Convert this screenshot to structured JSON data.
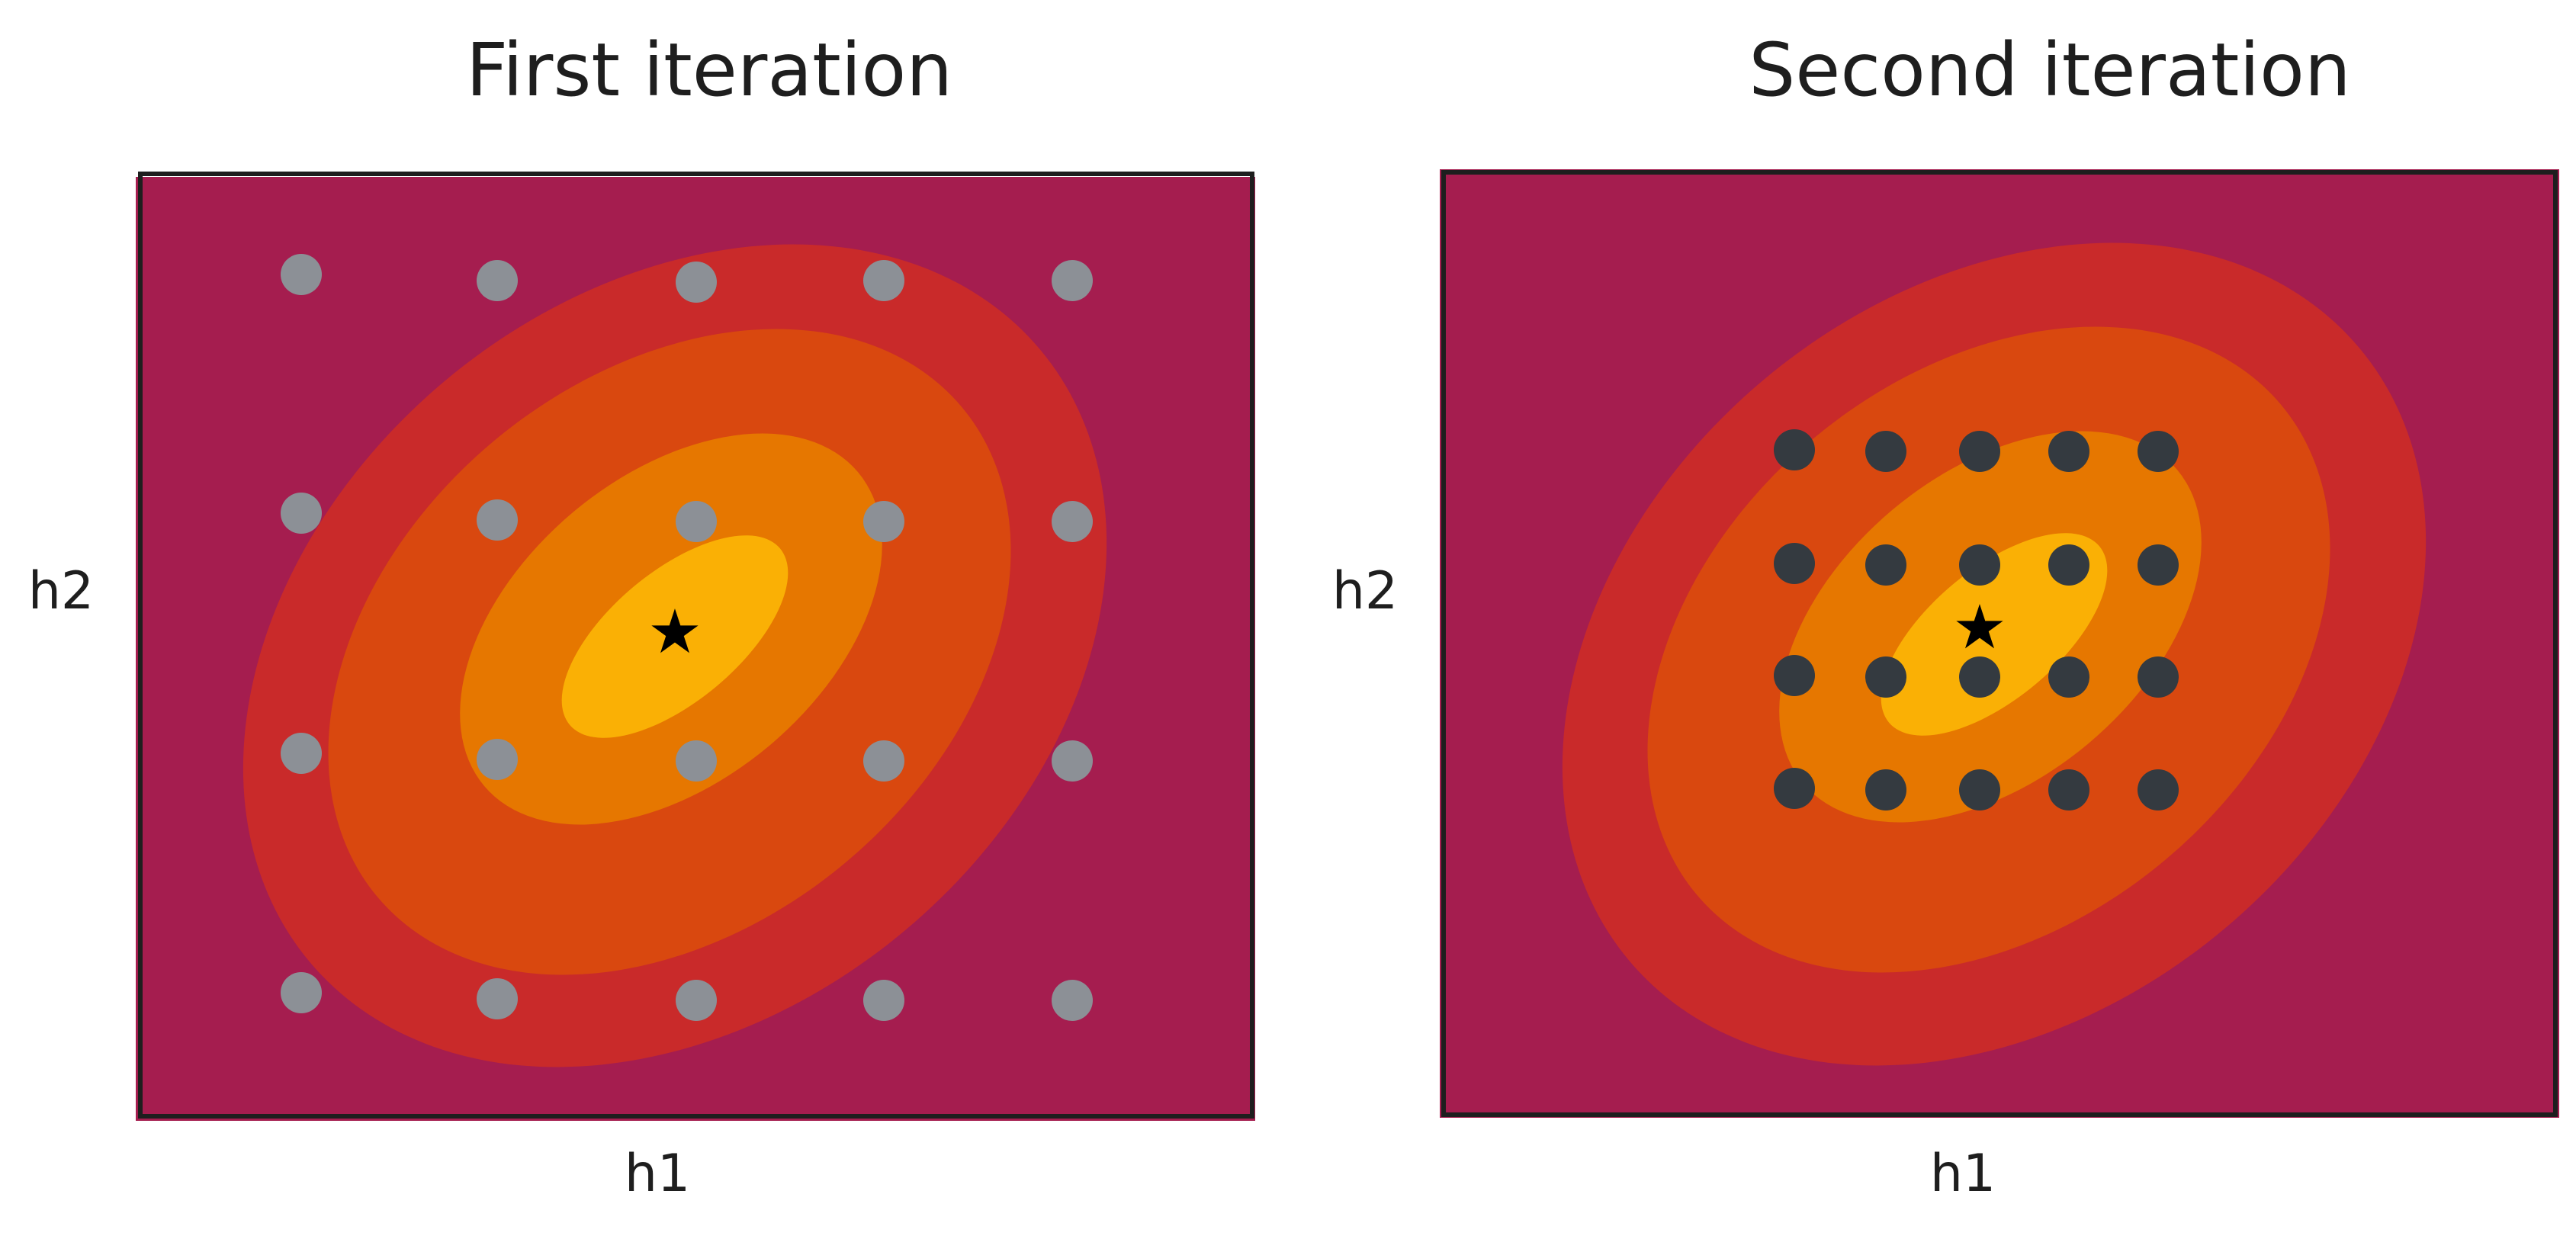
{
  "panels": [
    {
      "title": "First iteration",
      "xlabel": "h1",
      "ylabel": "h2",
      "optimum_marker": "★",
      "point_color": "#8c9096",
      "grid": {
        "columns": 5,
        "rows": 4
      }
    },
    {
      "title": "Second iteration",
      "xlabel": "h1",
      "ylabel": "h2",
      "optimum_marker": "★",
      "point_color": "#343a40",
      "grid": {
        "columns": 5,
        "rows": 4
      }
    }
  ],
  "colors": {
    "background": "#a51d4f",
    "contour_outer": "#c92a2a",
    "contour_middle": "#d9480f",
    "contour_inner": "#e67700",
    "contour_core": "#fab005",
    "frame_stroke": "#1e1e1e"
  }
}
